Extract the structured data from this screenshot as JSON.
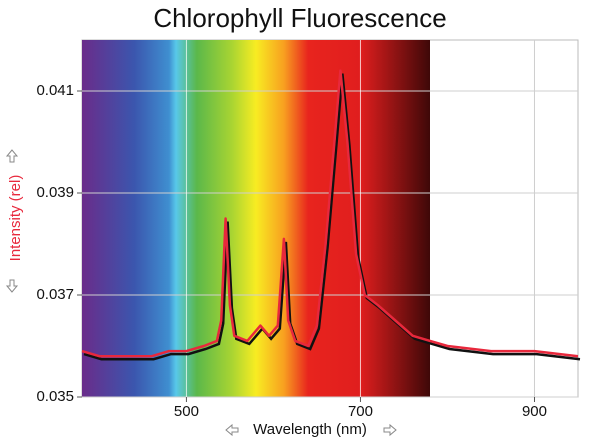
{
  "chart_data": {
    "type": "line",
    "title": "Chlorophyll Fluorescence",
    "x_label": "Wavelength (nm)",
    "y_label": "Intensity (rel)",
    "xlim": [
      380,
      950
    ],
    "ylim": [
      0.035,
      0.042
    ],
    "xticks": [
      500,
      700,
      900
    ],
    "yticks": [
      0.035,
      0.037,
      0.039,
      0.041
    ],
    "grid": true,
    "x": [
      380,
      400,
      420,
      440,
      460,
      480,
      500,
      520,
      535,
      540,
      545,
      550,
      555,
      570,
      585,
      595,
      605,
      612,
      617,
      625,
      640,
      650,
      660,
      670,
      677,
      685,
      695,
      705,
      720,
      740,
      760,
      780,
      800,
      850,
      900,
      950
    ],
    "series": [
      {
        "color": "#e8283c",
        "values": [
          0.0359,
          0.0358,
          0.0358,
          0.0358,
          0.0358,
          0.0359,
          0.0359,
          0.036,
          0.0361,
          0.0365,
          0.0385,
          0.0368,
          0.0362,
          0.0361,
          0.0364,
          0.0362,
          0.0364,
          0.0381,
          0.0365,
          0.0361,
          0.036,
          0.0364,
          0.038,
          0.04,
          0.0414,
          0.04,
          0.0378,
          0.037,
          0.0368,
          0.0365,
          0.0362,
          0.0361,
          0.036,
          0.0359,
          0.0359,
          0.0358
        ]
      }
    ]
  }
}
